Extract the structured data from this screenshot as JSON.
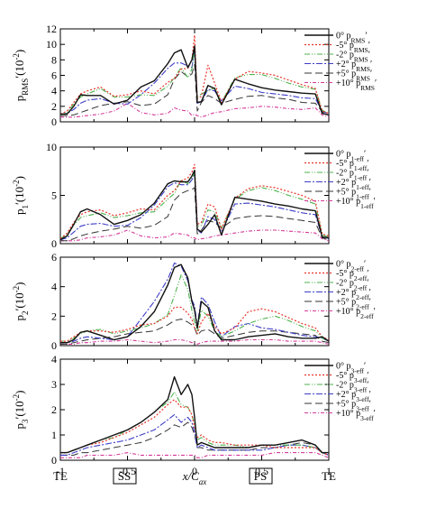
{
  "figure": {
    "xlabel": "x/C",
    "xlabel_sub": "ax",
    "bottom_labels": {
      "te_left": "TE",
      "ss": "SS",
      "ps": "PS",
      "te_right": "TE"
    }
  },
  "series_styles": [
    {
      "color": "#111111",
      "dash": "",
      "width": 1.4
    },
    {
      "color": "#e8342a",
      "dash": "2,2",
      "width": 1.2
    },
    {
      "color": "#4db24d",
      "dash": "6,2,1,2,1,2",
      "width": 1.1
    },
    {
      "color": "#3d3dc8",
      "dash": "7,2,2,2",
      "width": 1.1
    },
    {
      "color": "#333333",
      "dash": "8,4",
      "width": 1.0
    },
    {
      "color": "#d63a9a",
      "dash": "4,2,1,2",
      "width": 1.1
    }
  ],
  "chart_data": [
    {
      "type": "line",
      "ylabel_main": "p",
      "ylabel_sub": "RMS",
      "ylabel_suffix": "′(10",
      "ylabel_exp": "-2",
      "ylabel_close": ")",
      "xlim": [
        -1,
        1
      ],
      "ylim": [
        0,
        12
      ],
      "yticks": [
        0,
        2,
        4,
        6,
        8,
        10,
        12
      ],
      "xticks": [
        -1,
        -0.5,
        0,
        0.5,
        1
      ],
      "legend_sub": "RMS",
      "legend_prefixes": [
        "0°",
        "-5°",
        "-2°",
        "+2°",
        "+5°",
        "+10°"
      ],
      "x": [
        -1,
        -0.95,
        -0.9,
        -0.85,
        -0.8,
        -0.7,
        -0.6,
        -0.5,
        -0.4,
        -0.3,
        -0.2,
        -0.15,
        -0.1,
        -0.05,
        -0.02,
        0,
        0.02,
        0.05,
        0.1,
        0.15,
        0.2,
        0.3,
        0.4,
        0.5,
        0.6,
        0.7,
        0.8,
        0.9,
        0.95,
        1
      ],
      "series": [
        {
          "name": "0°",
          "values": [
            1.0,
            1.0,
            2.0,
            3.5,
            3.4,
            3.4,
            2.3,
            2.8,
            4.5,
            5.3,
            7.5,
            8.9,
            9.3,
            7.0,
            8.0,
            9.8,
            2.5,
            2.6,
            4.7,
            4.3,
            2.2,
            5.5,
            4.9,
            4.4,
            4.1,
            3.9,
            3.7,
            3.6,
            1.1,
            0.9
          ]
        },
        {
          "name": "-5°",
          "values": [
            1.0,
            1.4,
            2.5,
            3.6,
            4.0,
            4.5,
            3.3,
            3.5,
            4.0,
            3.6,
            5.1,
            5.6,
            6.8,
            6.9,
            8.0,
            11.2,
            3.0,
            3.3,
            7.3,
            5.0,
            2.5,
            5.5,
            6.5,
            6.3,
            6.0,
            5.4,
            4.8,
            4.3,
            1.4,
            1.1
          ]
        },
        {
          "name": "-2°",
          "values": [
            0.9,
            1.2,
            2.3,
            3.2,
            3.6,
            4.3,
            3.2,
            3.2,
            3.5,
            3.4,
            4.6,
            5.7,
            7.0,
            5.7,
            6.8,
            9.5,
            3.2,
            3.6,
            4.0,
            4.4,
            2.5,
            5.7,
            6.1,
            6.1,
            5.6,
            5.0,
            4.5,
            4.2,
            1.5,
            1.1
          ]
        },
        {
          "name": "+2°",
          "values": [
            1.0,
            1.1,
            1.6,
            2.4,
            2.8,
            3.0,
            2.4,
            2.3,
            3.5,
            5.0,
            6.9,
            7.6,
            7.6,
            7.2,
            7.0,
            9.2,
            2.4,
            2.6,
            4.2,
            4.0,
            2.7,
            4.6,
            4.3,
            3.8,
            3.6,
            3.4,
            3.1,
            3.0,
            1.4,
            1.0
          ]
        },
        {
          "name": "+5°",
          "values": [
            0.8,
            0.8,
            0.9,
            1.2,
            1.5,
            2.1,
            2.4,
            2.6,
            2.1,
            2.3,
            3.5,
            5.5,
            6.5,
            5.8,
            6.2,
            7.4,
            1.4,
            2.5,
            3.4,
            3.0,
            2.4,
            2.9,
            3.3,
            3.4,
            3.1,
            2.9,
            2.5,
            2.4,
            1.3,
            0.9
          ]
        },
        {
          "name": "+10°",
          "values": [
            0.6,
            0.6,
            0.6,
            0.7,
            0.8,
            1.0,
            1.4,
            2.4,
            1.2,
            0.9,
            1.1,
            1.8,
            1.5,
            1.4,
            0.8,
            1.0,
            0.8,
            0.6,
            0.9,
            1.2,
            1.3,
            1.7,
            1.8,
            2.0,
            1.9,
            1.7,
            1.6,
            1.8,
            0.9,
            0.6
          ]
        }
      ]
    },
    {
      "type": "line",
      "ylabel_main": "p",
      "ylabel_sub": "1",
      "ylabel_suffix": "′(10",
      "ylabel_exp": "-2",
      "ylabel_close": ")",
      "xlim": [
        -1,
        1
      ],
      "ylim": [
        0,
        10
      ],
      "yticks": [
        0,
        5,
        10
      ],
      "xticks": [
        -1,
        -0.5,
        0,
        0.5,
        1
      ],
      "legend_sub": "1-eff",
      "legend_prefixes": [
        "0°",
        "-5°",
        "-2°",
        "+2°",
        "+5°",
        "+10°"
      ],
      "x": [
        -1,
        -0.95,
        -0.9,
        -0.85,
        -0.8,
        -0.7,
        -0.6,
        -0.5,
        -0.4,
        -0.3,
        -0.2,
        -0.15,
        -0.1,
        -0.05,
        -0.02,
        0,
        0.02,
        0.05,
        0.1,
        0.15,
        0.2,
        0.3,
        0.4,
        0.5,
        0.6,
        0.7,
        0.8,
        0.9,
        0.95,
        1
      ],
      "series": [
        {
          "name": "0°",
          "values": [
            0.4,
            0.8,
            2.0,
            3.3,
            3.6,
            3.0,
            2.0,
            2.4,
            3.0,
            4.2,
            6.2,
            6.5,
            6.4,
            6.4,
            7.0,
            7.6,
            1.5,
            1.2,
            2.0,
            3.0,
            0.9,
            4.8,
            4.6,
            4.4,
            4.1,
            3.9,
            3.6,
            3.4,
            0.7,
            0.6
          ]
        },
        {
          "name": "-5°",
          "values": [
            0.5,
            1.1,
            2.2,
            3.0,
            3.3,
            3.5,
            2.9,
            3.2,
            3.6,
            3.5,
            5.0,
            5.5,
            6.5,
            6.8,
            7.4,
            8.2,
            2.0,
            2.2,
            4.1,
            3.8,
            1.5,
            4.7,
            5.7,
            6.0,
            5.8,
            5.4,
            5.0,
            4.4,
            1.0,
            0.8
          ]
        },
        {
          "name": "-2°",
          "values": [
            0.5,
            1.0,
            1.9,
            2.7,
            2.9,
            3.2,
            2.7,
            2.9,
            3.2,
            3.3,
            4.6,
            5.2,
            6.6,
            6.2,
            6.8,
            7.3,
            1.8,
            1.9,
            3.5,
            3.3,
            1.6,
            4.6,
            5.5,
            5.8,
            5.5,
            5.0,
            4.6,
            4.1,
            0.9,
            0.7
          ]
        },
        {
          "name": "+2°",
          "values": [
            0.4,
            0.6,
            1.2,
            1.8,
            2.0,
            2.1,
            1.8,
            1.9,
            2.7,
            4.0,
            5.9,
            6.3,
            6.1,
            6.1,
            6.6,
            7.3,
            1.4,
            1.1,
            2.8,
            2.5,
            1.2,
            4.1,
            4.2,
            4.0,
            3.8,
            3.5,
            3.2,
            3.0,
            0.7,
            0.5
          ]
        },
        {
          "name": "+5°",
          "values": [
            0.3,
            0.3,
            0.5,
            0.8,
            1.0,
            1.3,
            1.5,
            1.8,
            1.6,
            1.9,
            2.8,
            4.5,
            5.2,
            5.5,
            5.6,
            5.8,
            1.0,
            1.4,
            2.4,
            2.2,
            1.6,
            2.6,
            2.8,
            2.9,
            2.8,
            2.6,
            2.4,
            2.2,
            0.6,
            0.4
          ]
        },
        {
          "name": "+10°",
          "values": [
            0.3,
            0.3,
            0.3,
            0.4,
            0.6,
            0.7,
            0.9,
            1.4,
            0.8,
            0.6,
            0.7,
            1.1,
            1.0,
            0.9,
            0.6,
            0.6,
            0.4,
            0.5,
            0.6,
            0.8,
            0.9,
            1.1,
            1.3,
            1.4,
            1.4,
            1.3,
            1.2,
            1.1,
            0.5,
            0.3
          ]
        }
      ]
    },
    {
      "type": "line",
      "ylabel_main": "p",
      "ylabel_sub": "2",
      "ylabel_suffix": "′(10",
      "ylabel_exp": "-2",
      "ylabel_close": ")",
      "xlim": [
        -1,
        1
      ],
      "ylim": [
        0,
        6
      ],
      "yticks": [
        0,
        2,
        4,
        6
      ],
      "xticks": [
        -1,
        -0.5,
        0,
        0.5,
        1
      ],
      "legend_sub": "2-eff",
      "legend_prefixes": [
        "0°",
        "-5°",
        "-2°",
        "+2°",
        "+5°",
        "+10°"
      ],
      "x": [
        -1,
        -0.95,
        -0.9,
        -0.85,
        -0.8,
        -0.7,
        -0.6,
        -0.5,
        -0.4,
        -0.3,
        -0.2,
        -0.15,
        -0.1,
        -0.05,
        -0.02,
        0,
        0.02,
        0.05,
        0.1,
        0.15,
        0.2,
        0.3,
        0.4,
        0.5,
        0.6,
        0.7,
        0.8,
        0.9,
        0.95,
        1
      ],
      "series": [
        {
          "name": "0°",
          "values": [
            0.2,
            0.2,
            0.4,
            0.9,
            1.0,
            0.7,
            0.4,
            0.6,
            1.3,
            2.3,
            4.1,
            5.3,
            5.5,
            4.6,
            3.0,
            2.4,
            1.2,
            3.0,
            2.6,
            1.0,
            0.4,
            0.4,
            0.6,
            0.7,
            0.8,
            0.6,
            0.5,
            0.5,
            0.6,
            0.3
          ]
        },
        {
          "name": "-5°",
          "values": [
            0.3,
            0.3,
            0.6,
            0.9,
            1.0,
            1.0,
            0.9,
            1.1,
            1.4,
            1.5,
            2.0,
            2.6,
            2.6,
            2.2,
            1.8,
            1.2,
            0.8,
            1.6,
            2.2,
            1.3,
            0.8,
            1.2,
            2.3,
            2.5,
            2.3,
            1.9,
            1.5,
            1.2,
            0.6,
            0.4
          ]
        },
        {
          "name": "-2°",
          "values": [
            0.3,
            0.3,
            0.5,
            0.8,
            1.0,
            1.1,
            0.8,
            1.0,
            1.2,
            1.5,
            2.1,
            3.4,
            4.8,
            3.8,
            2.4,
            1.6,
            1.0,
            2.4,
            2.0,
            1.0,
            0.6,
            1.0,
            1.5,
            1.8,
            2.0,
            1.7,
            1.3,
            1.0,
            0.5,
            0.3
          ]
        },
        {
          "name": "+2°",
          "values": [
            0.2,
            0.2,
            0.3,
            0.5,
            0.6,
            0.5,
            0.4,
            0.6,
            1.8,
            3.0,
            4.5,
            5.6,
            5.4,
            4.4,
            3.1,
            2.7,
            1.3,
            3.3,
            2.8,
            1.6,
            0.6,
            1.3,
            1.5,
            1.2,
            1.1,
            0.9,
            0.7,
            0.6,
            0.5,
            0.3
          ]
        },
        {
          "name": "+5°",
          "values": [
            0.1,
            0.1,
            0.2,
            0.3,
            0.4,
            0.5,
            0.6,
            0.8,
            0.9,
            1.0,
            1.4,
            1.7,
            1.8,
            1.6,
            1.4,
            1.2,
            0.7,
            1.0,
            1.1,
            0.8,
            0.5,
            0.7,
            0.9,
            1.0,
            1.0,
            0.9,
            0.8,
            0.7,
            0.3,
            0.2
          ]
        },
        {
          "name": "+10°",
          "values": [
            0.1,
            0.1,
            0.1,
            0.2,
            0.2,
            0.3,
            0.3,
            0.4,
            0.3,
            0.2,
            0.3,
            0.4,
            0.4,
            0.3,
            0.2,
            0.2,
            0.1,
            0.2,
            0.3,
            0.3,
            0.3,
            0.3,
            0.4,
            0.4,
            0.4,
            0.3,
            0.3,
            0.3,
            0.2,
            0.1
          ]
        }
      ]
    },
    {
      "type": "line",
      "ylabel_main": "p",
      "ylabel_sub": "3",
      "ylabel_suffix": "′(10",
      "ylabel_exp": "-2",
      "ylabel_close": ")",
      "xlim": [
        -1,
        1
      ],
      "ylim": [
        0,
        4
      ],
      "yticks": [
        0,
        1,
        2,
        3,
        4
      ],
      "xticks": [
        -1,
        -0.5,
        0,
        0.5,
        1
      ],
      "xticklabels": [
        "-1",
        "-0.5",
        "0",
        "0.5",
        "1"
      ],
      "legend_sub": "3-eff",
      "legend_prefixes": [
        "0°",
        "-5°",
        "-2°",
        "+2°",
        "+5°",
        "+10°"
      ],
      "x": [
        -1,
        -0.95,
        -0.9,
        -0.85,
        -0.8,
        -0.7,
        -0.6,
        -0.5,
        -0.4,
        -0.3,
        -0.2,
        -0.15,
        -0.1,
        -0.05,
        -0.02,
        0,
        0.02,
        0.05,
        0.1,
        0.15,
        0.2,
        0.3,
        0.4,
        0.5,
        0.6,
        0.7,
        0.8,
        0.9,
        0.95,
        1
      ],
      "series": [
        {
          "name": "0°",
          "values": [
            0.3,
            0.3,
            0.4,
            0.5,
            0.6,
            0.8,
            1.0,
            1.2,
            1.5,
            1.9,
            2.4,
            3.3,
            2.6,
            3.0,
            2.6,
            1.7,
            0.6,
            0.7,
            0.6,
            0.5,
            0.5,
            0.5,
            0.5,
            0.6,
            0.6,
            0.7,
            0.8,
            0.6,
            0.3,
            0.3
          ]
        },
        {
          "name": "-5°",
          "values": [
            0.3,
            0.3,
            0.4,
            0.5,
            0.6,
            0.7,
            0.9,
            1.1,
            1.4,
            1.7,
            2.2,
            2.4,
            2.1,
            2.1,
            1.8,
            1.3,
            0.9,
            1.0,
            0.8,
            0.7,
            0.7,
            0.6,
            0.6,
            0.6,
            0.5,
            0.5,
            0.5,
            0.5,
            0.3,
            0.2
          ]
        },
        {
          "name": "-2°",
          "values": [
            0.3,
            0.3,
            0.4,
            0.5,
            0.6,
            0.8,
            0.9,
            1.2,
            1.5,
            1.9,
            2.3,
            2.7,
            2.2,
            2.1,
            1.8,
            1.4,
            0.8,
            0.9,
            0.7,
            0.6,
            0.6,
            0.6,
            0.5,
            0.6,
            0.6,
            0.6,
            0.6,
            0.5,
            0.3,
            0.2
          ]
        },
        {
          "name": "+2°",
          "values": [
            0.2,
            0.2,
            0.3,
            0.4,
            0.5,
            0.6,
            0.7,
            0.8,
            1.0,
            1.2,
            1.6,
            1.8,
            1.5,
            1.7,
            1.5,
            1.1,
            0.5,
            0.6,
            0.5,
            0.4,
            0.4,
            0.4,
            0.4,
            0.4,
            0.5,
            0.6,
            0.6,
            0.5,
            0.3,
            0.2
          ]
        },
        {
          "name": "+5°",
          "values": [
            0.2,
            0.2,
            0.2,
            0.3,
            0.3,
            0.4,
            0.5,
            0.6,
            0.7,
            0.9,
            1.2,
            1.4,
            1.3,
            1.5,
            1.3,
            1.0,
            0.5,
            0.5,
            0.4,
            0.4,
            0.4,
            0.4,
            0.4,
            0.5,
            0.5,
            0.6,
            0.7,
            0.6,
            0.3,
            0.2
          ]
        },
        {
          "name": "+10°",
          "values": [
            0.1,
            0.1,
            0.1,
            0.1,
            0.2,
            0.2,
            0.2,
            0.3,
            0.2,
            0.2,
            0.2,
            0.2,
            0.2,
            0.2,
            0.2,
            0.2,
            0.1,
            0.1,
            0.2,
            0.2,
            0.2,
            0.2,
            0.2,
            0.2,
            0.3,
            0.3,
            0.3,
            0.3,
            0.2,
            0.1
          ]
        }
      ]
    }
  ]
}
